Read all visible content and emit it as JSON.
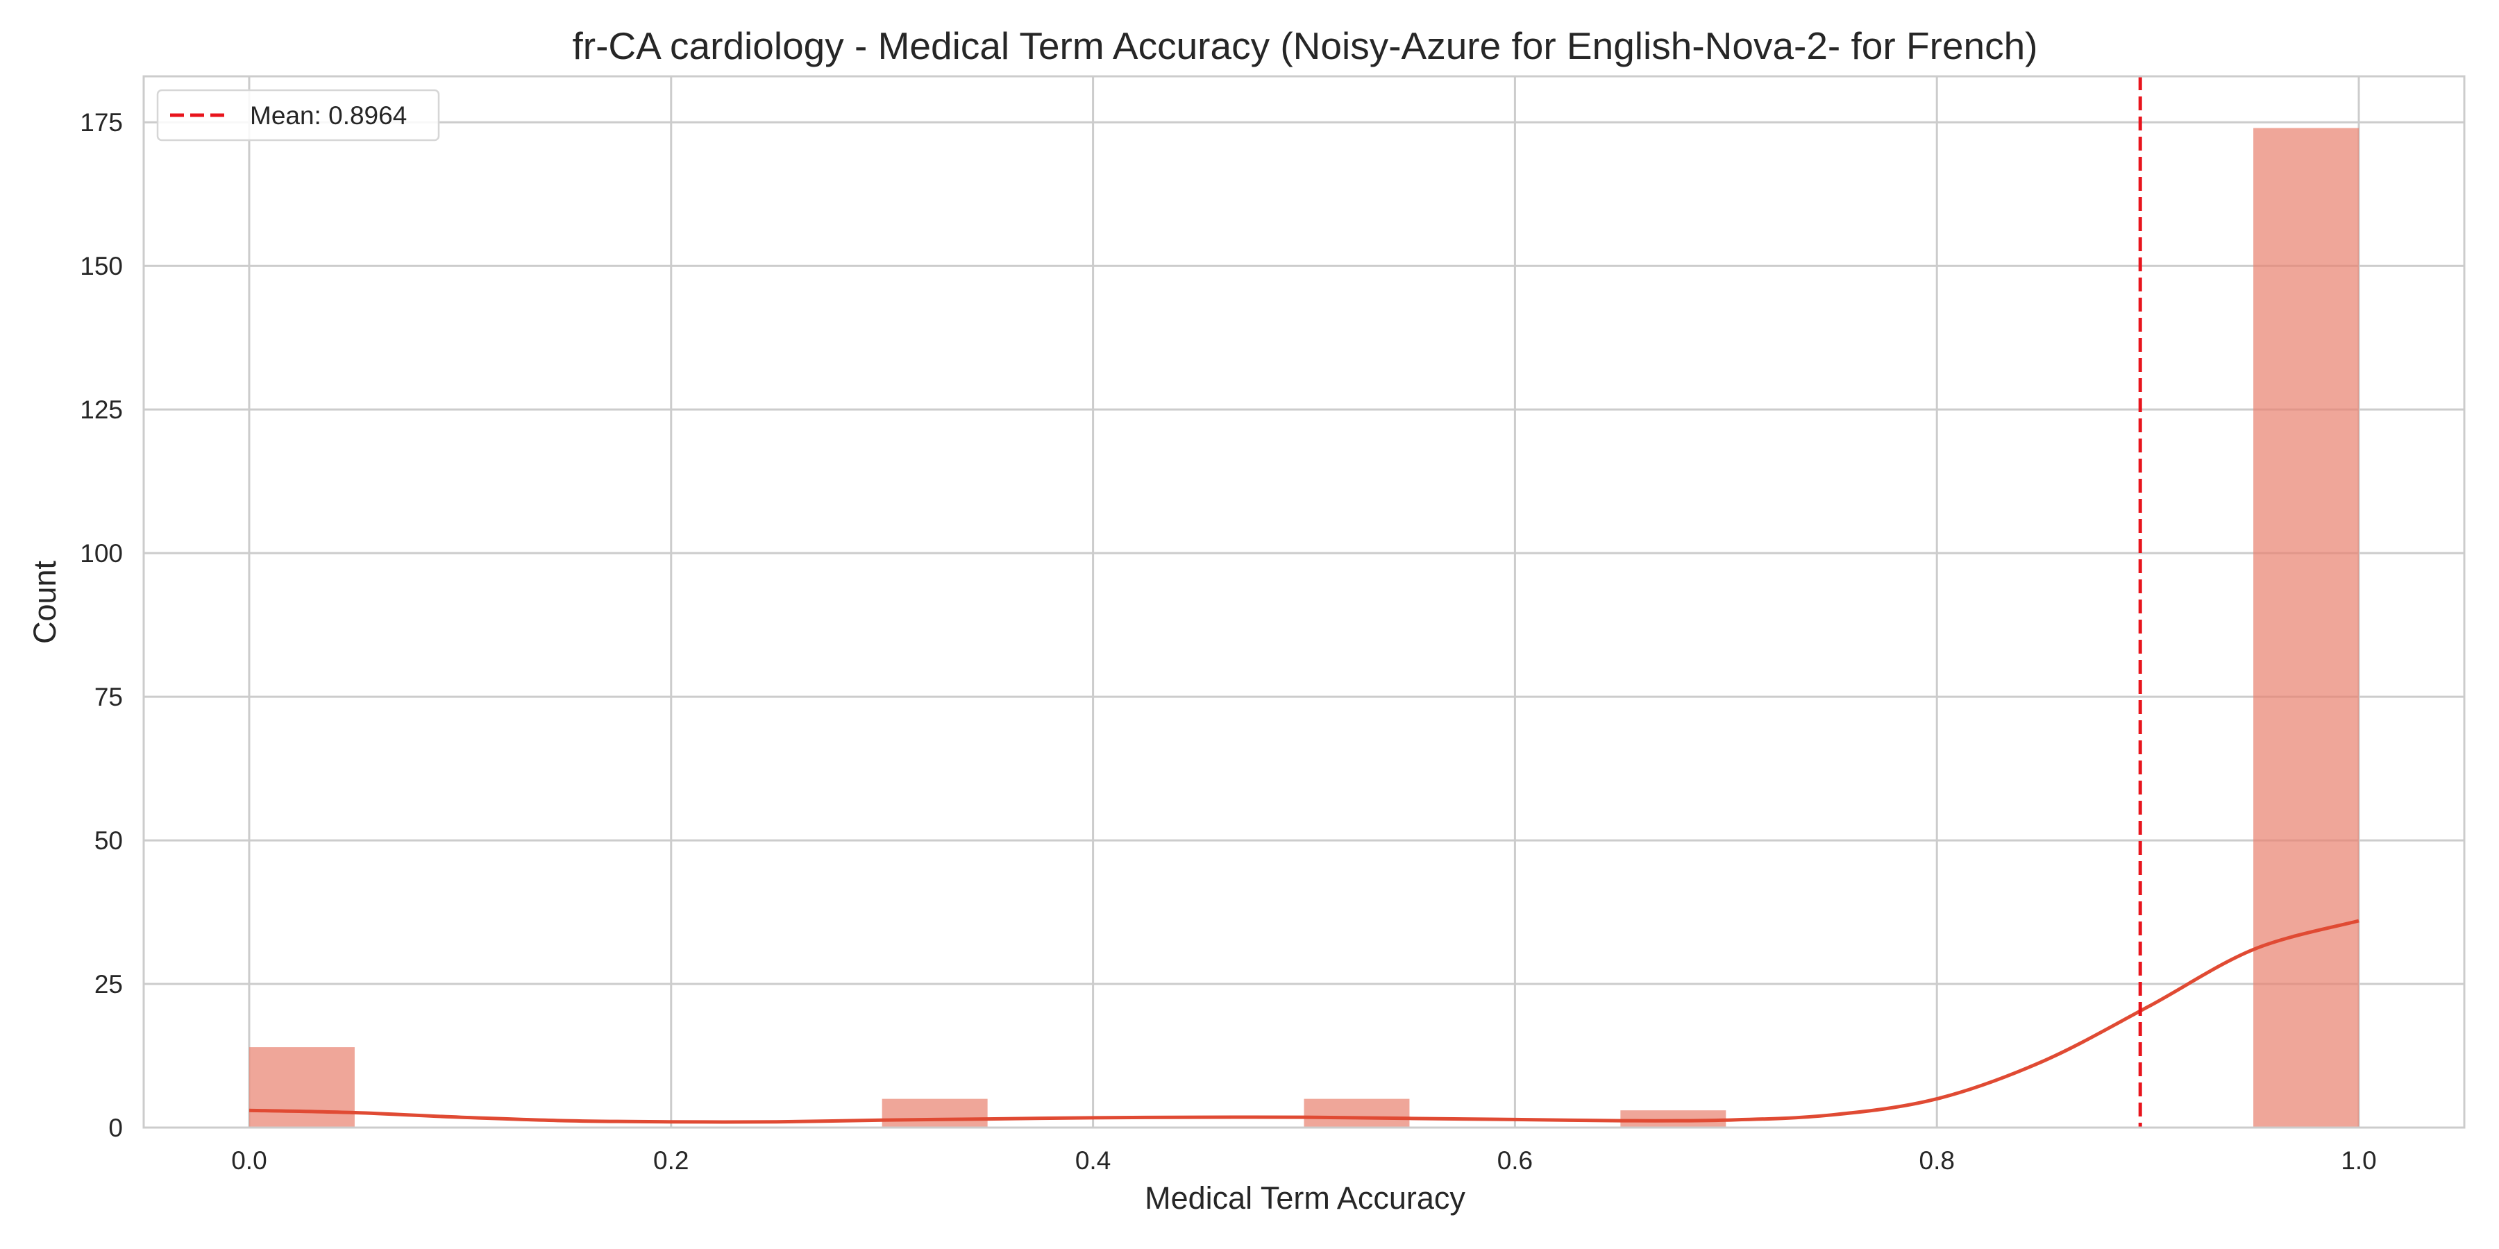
{
  "chart_data": {
    "type": "histogram",
    "title": "fr-CA cardiology - Medical Term Accuracy (Noisy-Azure for English-Nova-2- for French)",
    "xlabel": "Medical Term Accuracy",
    "ylabel": "Count",
    "xlim": [
      -0.05,
      1.05
    ],
    "ylim": [
      0,
      183
    ],
    "xticks": [
      0.0,
      0.2,
      0.4,
      0.6,
      0.8,
      1.0
    ],
    "xtick_labels": [
      "0.0",
      "0.2",
      "0.4",
      "0.6",
      "0.8",
      "1.0"
    ],
    "yticks": [
      0,
      25,
      50,
      75,
      100,
      125,
      150,
      175
    ],
    "ytick_labels": [
      "0",
      "25",
      "50",
      "75",
      "100",
      "125",
      "150",
      "175"
    ],
    "grid": true,
    "bar_color": "#e8806d",
    "bar_opacity": 0.7,
    "bins": [
      {
        "x0": 0.0,
        "x1": 0.05,
        "count": 14
      },
      {
        "x0": 0.05,
        "x1": 0.1,
        "count": 0
      },
      {
        "x0": 0.1,
        "x1": 0.15,
        "count": 0
      },
      {
        "x0": 0.15,
        "x1": 0.2,
        "count": 0
      },
      {
        "x0": 0.2,
        "x1": 0.25,
        "count": 0
      },
      {
        "x0": 0.25,
        "x1": 0.3,
        "count": 0
      },
      {
        "x0": 0.3,
        "x1": 0.35,
        "count": 5
      },
      {
        "x0": 0.35,
        "x1": 0.4,
        "count": 0
      },
      {
        "x0": 0.4,
        "x1": 0.45,
        "count": 0
      },
      {
        "x0": 0.45,
        "x1": 0.5,
        "count": 0
      },
      {
        "x0": 0.5,
        "x1": 0.55,
        "count": 5
      },
      {
        "x0": 0.55,
        "x1": 0.6,
        "count": 0
      },
      {
        "x0": 0.6,
        "x1": 0.65,
        "count": 0
      },
      {
        "x0": 0.65,
        "x1": 0.7,
        "count": 3
      },
      {
        "x0": 0.7,
        "x1": 0.75,
        "count": 0
      },
      {
        "x0": 0.75,
        "x1": 0.8,
        "count": 0
      },
      {
        "x0": 0.8,
        "x1": 0.85,
        "count": 0
      },
      {
        "x0": 0.85,
        "x1": 0.9,
        "count": 0
      },
      {
        "x0": 0.9,
        "x1": 0.95,
        "count": 0
      },
      {
        "x0": 0.95,
        "x1": 1.0,
        "count": 174
      }
    ],
    "kde": {
      "color": "#e04a33",
      "x": [
        0.0,
        0.05,
        0.1,
        0.15,
        0.2,
        0.25,
        0.3,
        0.35,
        0.4,
        0.45,
        0.5,
        0.55,
        0.6,
        0.65,
        0.7,
        0.75,
        0.8,
        0.85,
        0.9,
        0.95,
        1.0
      ],
      "y": [
        3.0,
        2.6,
        1.8,
        1.2,
        1.0,
        1.0,
        1.3,
        1.5,
        1.7,
        1.8,
        1.8,
        1.6,
        1.4,
        1.2,
        1.3,
        2.2,
        5.0,
        11.5,
        21.0,
        31.0,
        36.0
      ]
    },
    "mean": {
      "value": 0.8964,
      "color": "#e8141c",
      "label": "Mean: 0.8964"
    },
    "legend_position": "upper-left"
  }
}
